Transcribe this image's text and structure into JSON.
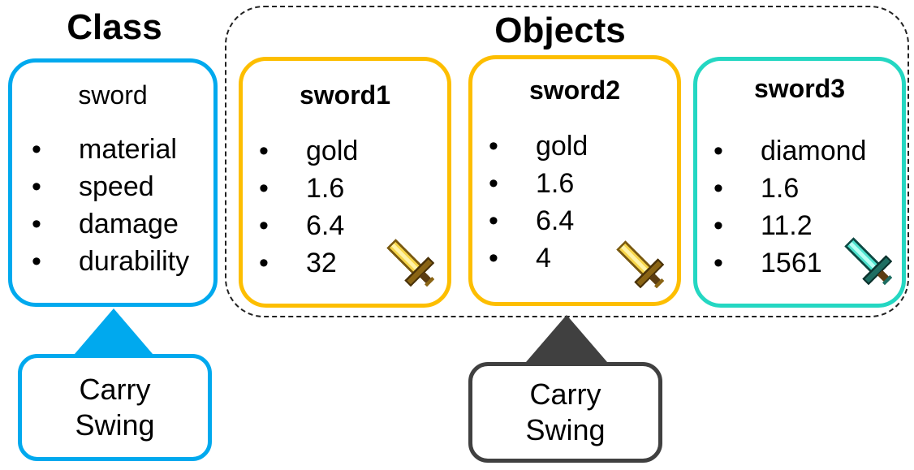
{
  "class_section": {
    "heading": "Class",
    "class_box": {
      "title": "sword",
      "attributes": [
        "material",
        "speed",
        "damage",
        "durability"
      ],
      "border_color": "#00A9EE"
    },
    "methods_box": {
      "lines": [
        "Carry",
        "Swing"
      ],
      "border_color": "#00A9EE"
    }
  },
  "objects_section": {
    "heading": "Objects",
    "objects": [
      {
        "name": "sword1",
        "values": [
          "gold",
          "1.6",
          "6.4",
          "32"
        ],
        "border_color": "#FDBE00",
        "icon": "gold-sword-icon"
      },
      {
        "name": "sword2",
        "values": [
          "gold",
          "1.6",
          "6.4",
          "4"
        ],
        "border_color": "#FDBE00",
        "icon": "gold-sword-icon"
      },
      {
        "name": "sword3",
        "values": [
          "diamond",
          "1.6",
          "11.2",
          "1561"
        ],
        "border_color": "#24D7C2",
        "icon": "diamond-sword-icon"
      }
    ],
    "methods_box": {
      "lines": [
        "Carry",
        "Swing"
      ],
      "border_color": "#404040"
    }
  },
  "bullet_glyph": "•"
}
